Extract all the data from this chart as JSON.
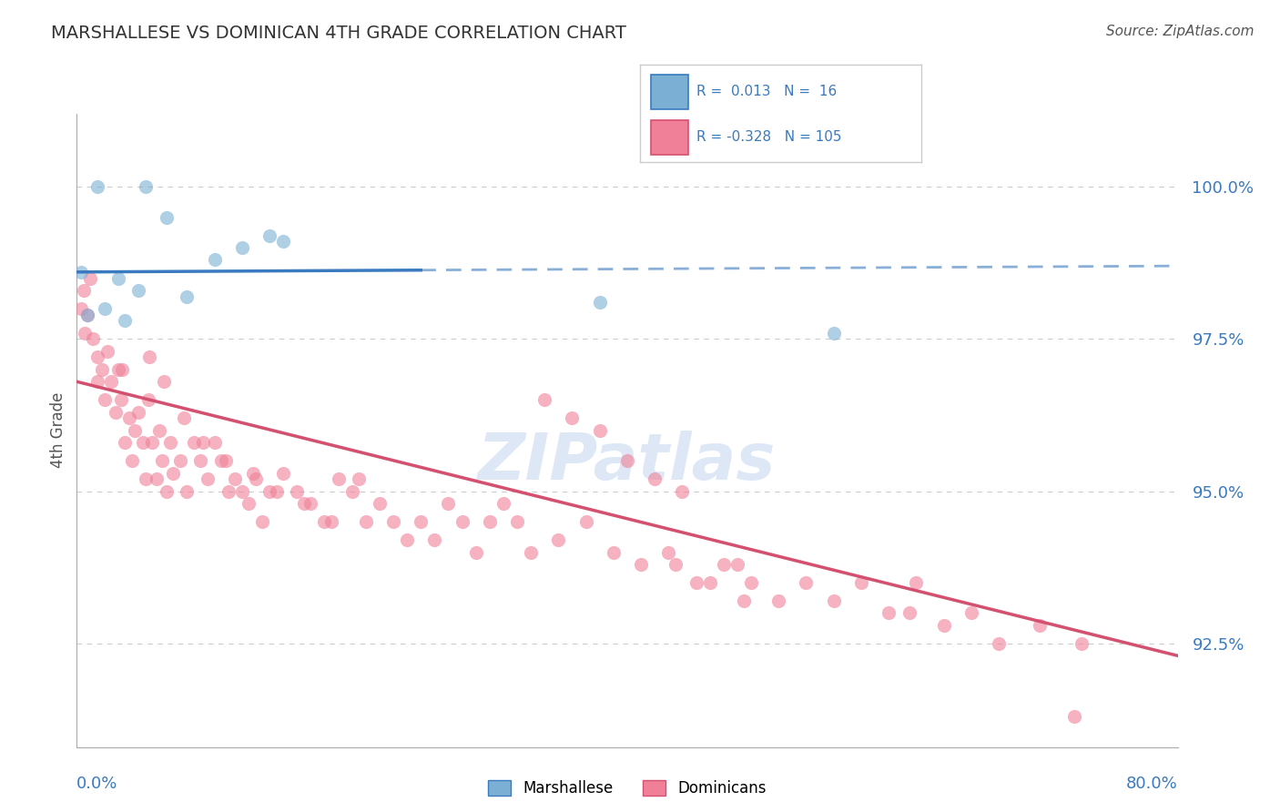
{
  "title": "MARSHALLESE VS DOMINICAN 4TH GRADE CORRELATION CHART",
  "source": "Source: ZipAtlas.com",
  "ylabel": "4th Grade",
  "xlim": [
    0.0,
    80.0
  ],
  "ylim": [
    90.8,
    101.2
  ],
  "yticks": [
    92.5,
    95.0,
    97.5,
    100.0
  ],
  "ytick_labels": [
    "92.5%",
    "95.0%",
    "97.5%",
    "100.0%"
  ],
  "R_marshallese": 0.013,
  "N_marshallese": 16,
  "R_dominican": -0.328,
  "N_dominican": 105,
  "blue_scatter_x": [
    1.5,
    5.0,
    10.0,
    12.0,
    14.0,
    15.0,
    3.0,
    4.5,
    8.0,
    2.0,
    3.5,
    6.5,
    38.0,
    55.0,
    0.3,
    0.8
  ],
  "blue_scatter_y": [
    100.0,
    100.0,
    98.8,
    99.0,
    99.2,
    99.1,
    98.5,
    98.3,
    98.2,
    98.0,
    97.8,
    99.5,
    98.1,
    97.6,
    98.6,
    97.9
  ],
  "pink_scatter_x": [
    0.5,
    0.8,
    1.0,
    1.2,
    1.5,
    1.5,
    1.8,
    2.0,
    2.2,
    2.5,
    2.8,
    3.0,
    3.2,
    3.5,
    3.8,
    4.0,
    4.2,
    4.5,
    4.8,
    5.0,
    5.2,
    5.5,
    5.8,
    6.0,
    6.2,
    6.5,
    6.8,
    7.0,
    7.5,
    8.0,
    8.5,
    9.0,
    9.5,
    10.0,
    10.5,
    11.0,
    11.5,
    12.0,
    12.5,
    13.0,
    13.5,
    14.0,
    15.0,
    16.0,
    17.0,
    18.0,
    19.0,
    20.0,
    21.0,
    22.0,
    23.0,
    24.0,
    25.0,
    26.0,
    27.0,
    28.0,
    29.0,
    30.0,
    31.0,
    32.0,
    33.0,
    35.0,
    37.0,
    39.0,
    41.0,
    43.0,
    45.0,
    47.0,
    49.0,
    51.0,
    53.0,
    55.0,
    57.0,
    59.0,
    61.0,
    63.0,
    65.0,
    67.0,
    70.0,
    73.0,
    40.0,
    42.0,
    44.0,
    46.0,
    48.0,
    36.0,
    38.0,
    34.0,
    0.3,
    0.6,
    3.3,
    5.3,
    6.3,
    7.8,
    9.2,
    10.8,
    12.8,
    14.5,
    16.5,
    18.5,
    20.5,
    43.5,
    48.5,
    60.5,
    72.5
  ],
  "pink_scatter_y": [
    98.3,
    97.9,
    98.5,
    97.5,
    97.2,
    96.8,
    97.0,
    96.5,
    97.3,
    96.8,
    96.3,
    97.0,
    96.5,
    95.8,
    96.2,
    95.5,
    96.0,
    96.3,
    95.8,
    95.2,
    96.5,
    95.8,
    95.2,
    96.0,
    95.5,
    95.0,
    95.8,
    95.3,
    95.5,
    95.0,
    95.8,
    95.5,
    95.2,
    95.8,
    95.5,
    95.0,
    95.2,
    95.0,
    94.8,
    95.2,
    94.5,
    95.0,
    95.3,
    95.0,
    94.8,
    94.5,
    95.2,
    95.0,
    94.5,
    94.8,
    94.5,
    94.2,
    94.5,
    94.2,
    94.8,
    94.5,
    94.0,
    94.5,
    94.8,
    94.5,
    94.0,
    94.2,
    94.5,
    94.0,
    93.8,
    94.0,
    93.5,
    93.8,
    93.5,
    93.2,
    93.5,
    93.2,
    93.5,
    93.0,
    93.5,
    92.8,
    93.0,
    92.5,
    92.8,
    92.5,
    95.5,
    95.2,
    95.0,
    93.5,
    93.8,
    96.2,
    96.0,
    96.5,
    98.0,
    97.6,
    97.0,
    97.2,
    96.8,
    96.2,
    95.8,
    95.5,
    95.3,
    95.0,
    94.8,
    94.5,
    95.2,
    93.8,
    93.2,
    93.0,
    91.3
  ],
  "blue_line_x": [
    0.0,
    80.0
  ],
  "blue_line_y": [
    98.6,
    98.7
  ],
  "blue_line_dash_start": 25.0,
  "pink_line_x": [
    0.0,
    80.0
  ],
  "pink_line_y": [
    96.8,
    92.3
  ],
  "scatter_size": 120,
  "scatter_alpha": 0.6,
  "dot_color_blue": "#7bafd4",
  "dot_color_pink": "#f08098",
  "line_color_blue": "#3a7abf",
  "line_color_pink": "#d45070",
  "grid_color": "#cccccc",
  "watermark_text": "ZIPatlas",
  "watermark_color": "#c8d8f0",
  "background_color": "#ffffff"
}
